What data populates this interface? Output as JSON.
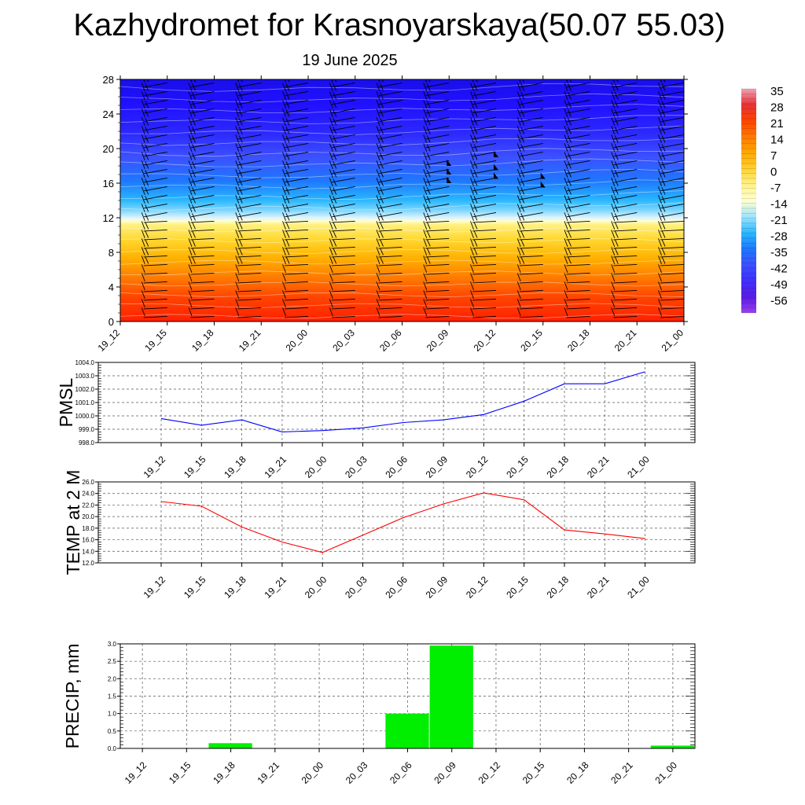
{
  "title": "Kazhydromet for Krasnoyarskaya(50.07 55.03)",
  "subtitle": "19 June 2025",
  "chart_data": [
    {
      "type": "heatmap",
      "name": "cross-section",
      "x_categories": [
        "19_12",
        "19_15",
        "19_18",
        "19_21",
        "20_00",
        "20_03",
        "20_06",
        "20_09",
        "20_12",
        "20_15",
        "20_18",
        "20_21",
        "21_00"
      ],
      "y_ticks": [
        0,
        4,
        8,
        12,
        16,
        20,
        24,
        28
      ],
      "ylim": [
        0,
        28
      ],
      "freezing_level": [
        12.2,
        12.0,
        12.0,
        12.0,
        12.0,
        12.0,
        12.1,
        12.2,
        12.5,
        12.7,
        12.8,
        12.9,
        12.9
      ],
      "colorbar": {
        "labels": [
          "35",
          "28",
          "21",
          "14",
          "7",
          "0",
          "-7",
          "-14",
          "-21",
          "-28",
          "-35",
          "-42",
          "-49",
          "-56"
        ],
        "stops": [
          "#f0a0b4",
          "#e83236",
          "#ff4400",
          "#ff7a00",
          "#ffa800",
          "#ffd230",
          "#fff28c",
          "#ffffd0",
          "#9ee4ff",
          "#2ab8ff",
          "#1e78ff",
          "#3c50ff",
          "#4030ff",
          "#5a1ce6",
          "#9a40e8"
        ]
      },
      "wind_barb_columns": [
        "19_12",
        "19_15",
        "19_18",
        "19_21",
        "20_00",
        "20_03",
        "20_06",
        "20_09",
        "20_12",
        "20_15",
        "20_18",
        "20_21",
        "21_00"
      ],
      "pennant_markers": [
        {
          "x": "20_09",
          "y": [
            16.0,
            17.0,
            18.0
          ]
        },
        {
          "x": "20_12",
          "y": [
            16.5,
            17.5,
            19.0
          ]
        },
        {
          "x": "20_15",
          "y": [
            15.5,
            16.5
          ]
        }
      ]
    },
    {
      "type": "line",
      "name": "pmsl",
      "ylabel": "PMSL",
      "categories": [
        "19_12",
        "19_15",
        "19_18",
        "19_21",
        "20_00",
        "20_03",
        "20_06",
        "20_09",
        "20_12",
        "20_15",
        "20_18",
        "20_21",
        "21_00"
      ],
      "values": [
        999.8,
        999.3,
        999.7,
        998.8,
        998.9,
        999.1,
        999.5,
        999.7,
        1000.1,
        1001.1,
        1002.4,
        1002.4,
        1003.3
      ],
      "ylim": [
        998.0,
        1004.0
      ],
      "yticks": [
        "998.0",
        "999.0",
        "1000.0",
        "1001.0",
        "1002.0",
        "1003.0",
        "1004.0"
      ],
      "color": "#0000ff",
      "grid": true
    },
    {
      "type": "line",
      "name": "temp",
      "ylabel": "TEMP at 2 M",
      "categories": [
        "19_12",
        "19_15",
        "19_18",
        "19_21",
        "20_00",
        "20_03",
        "20_06",
        "20_09",
        "20_12",
        "20_15",
        "20_18",
        "20_21",
        "21_00"
      ],
      "values": [
        22.6,
        21.8,
        18.2,
        15.6,
        13.8,
        16.8,
        19.8,
        22.2,
        24.1,
        22.9,
        17.7,
        17.0,
        16.2
      ],
      "ylim": [
        12.0,
        26.0
      ],
      "yticks": [
        "12.0",
        "14.0",
        "16.0",
        "18.0",
        "20.0",
        "22.0",
        "24.0",
        "26.0"
      ],
      "color": "#ff0000",
      "grid": true
    },
    {
      "type": "bar",
      "name": "precip",
      "ylabel": "PRECIP, mm",
      "categories": [
        "19_12",
        "19_15",
        "19_18",
        "19_21",
        "20_00",
        "20_03",
        "20_06",
        "20_09",
        "20_12",
        "20_15",
        "20_18",
        "20_21",
        "21_00"
      ],
      "values": [
        0,
        0,
        0.15,
        0,
        0,
        0,
        1.0,
        2.95,
        0,
        0,
        0,
        0,
        0.08
      ],
      "ylim": [
        0,
        3.0
      ],
      "yticks": [
        "0.0",
        "0.5",
        "1.0",
        "1.5",
        "2.0",
        "2.5",
        "3.0"
      ],
      "color": "#00ee00",
      "grid": true
    }
  ]
}
